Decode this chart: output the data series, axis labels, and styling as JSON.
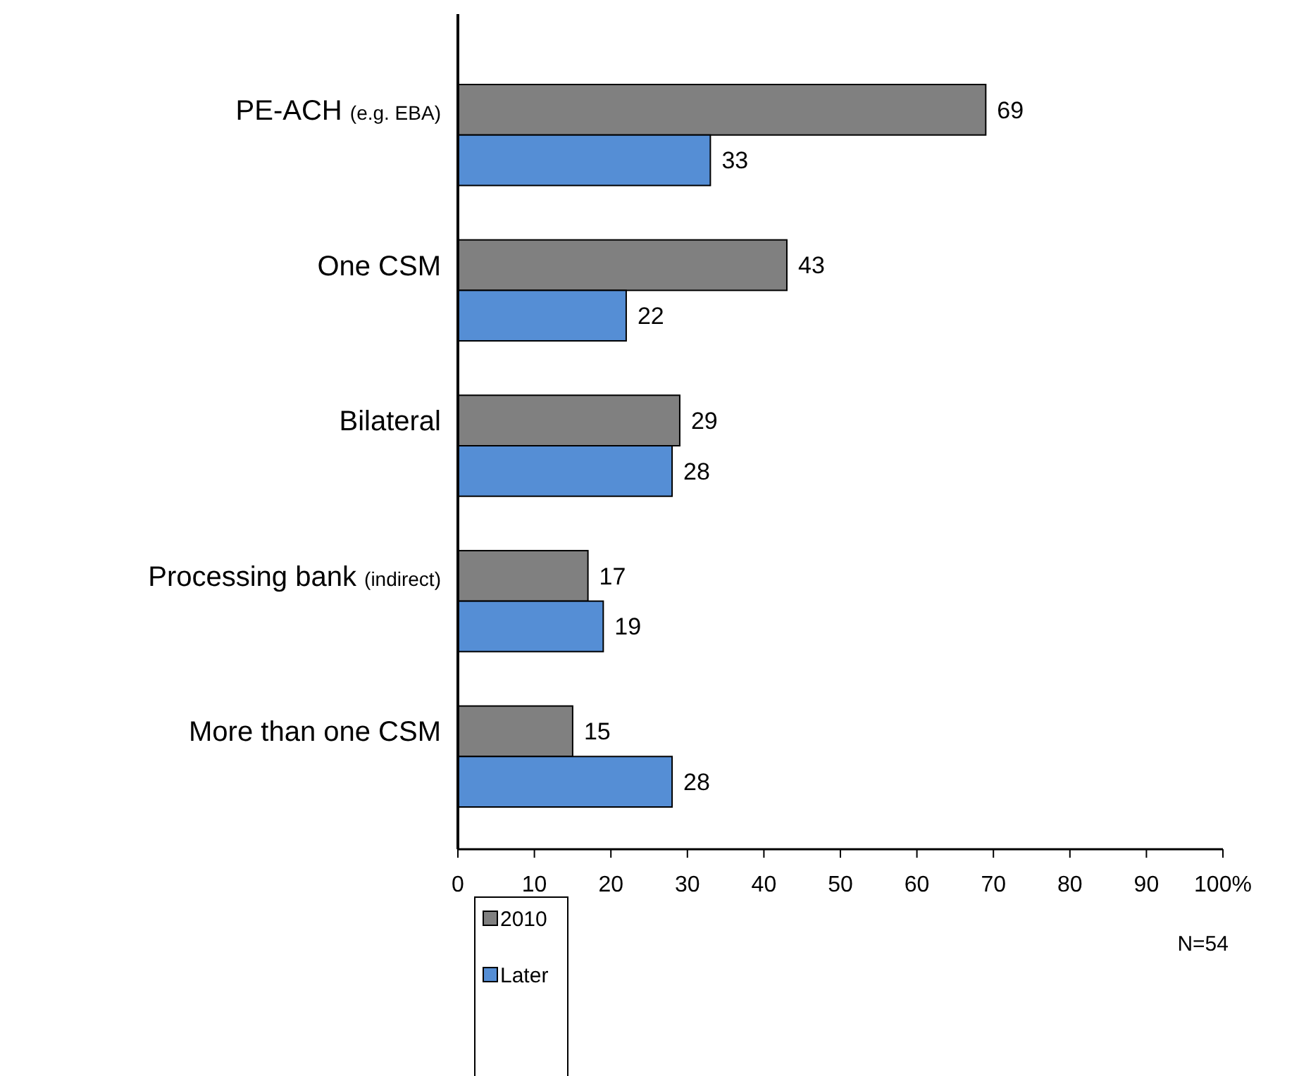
{
  "chart_data": {
    "type": "bar",
    "orientation": "horizontal",
    "categories": [
      "PE-ACH (e.g. EBA)",
      "One CSM",
      "Bilateral",
      "Processing bank (indirect)",
      "More than one CSM"
    ],
    "series": [
      {
        "name": "2010",
        "color": "#808080",
        "values": [
          69,
          43,
          29,
          17,
          15
        ]
      },
      {
        "name": "Later",
        "color": "#558ed5",
        "values": [
          33,
          22,
          28,
          19,
          28
        ]
      }
    ],
    "xlim": [
      0,
      100
    ],
    "xticks": [
      0,
      10,
      20,
      30,
      40,
      50,
      60,
      70,
      80,
      90,
      {
        "value": 100,
        "label": "100%"
      }
    ],
    "data_labels": true,
    "grid": false,
    "legend": "bottom left",
    "annotations": [
      "N=54"
    ]
  }
}
